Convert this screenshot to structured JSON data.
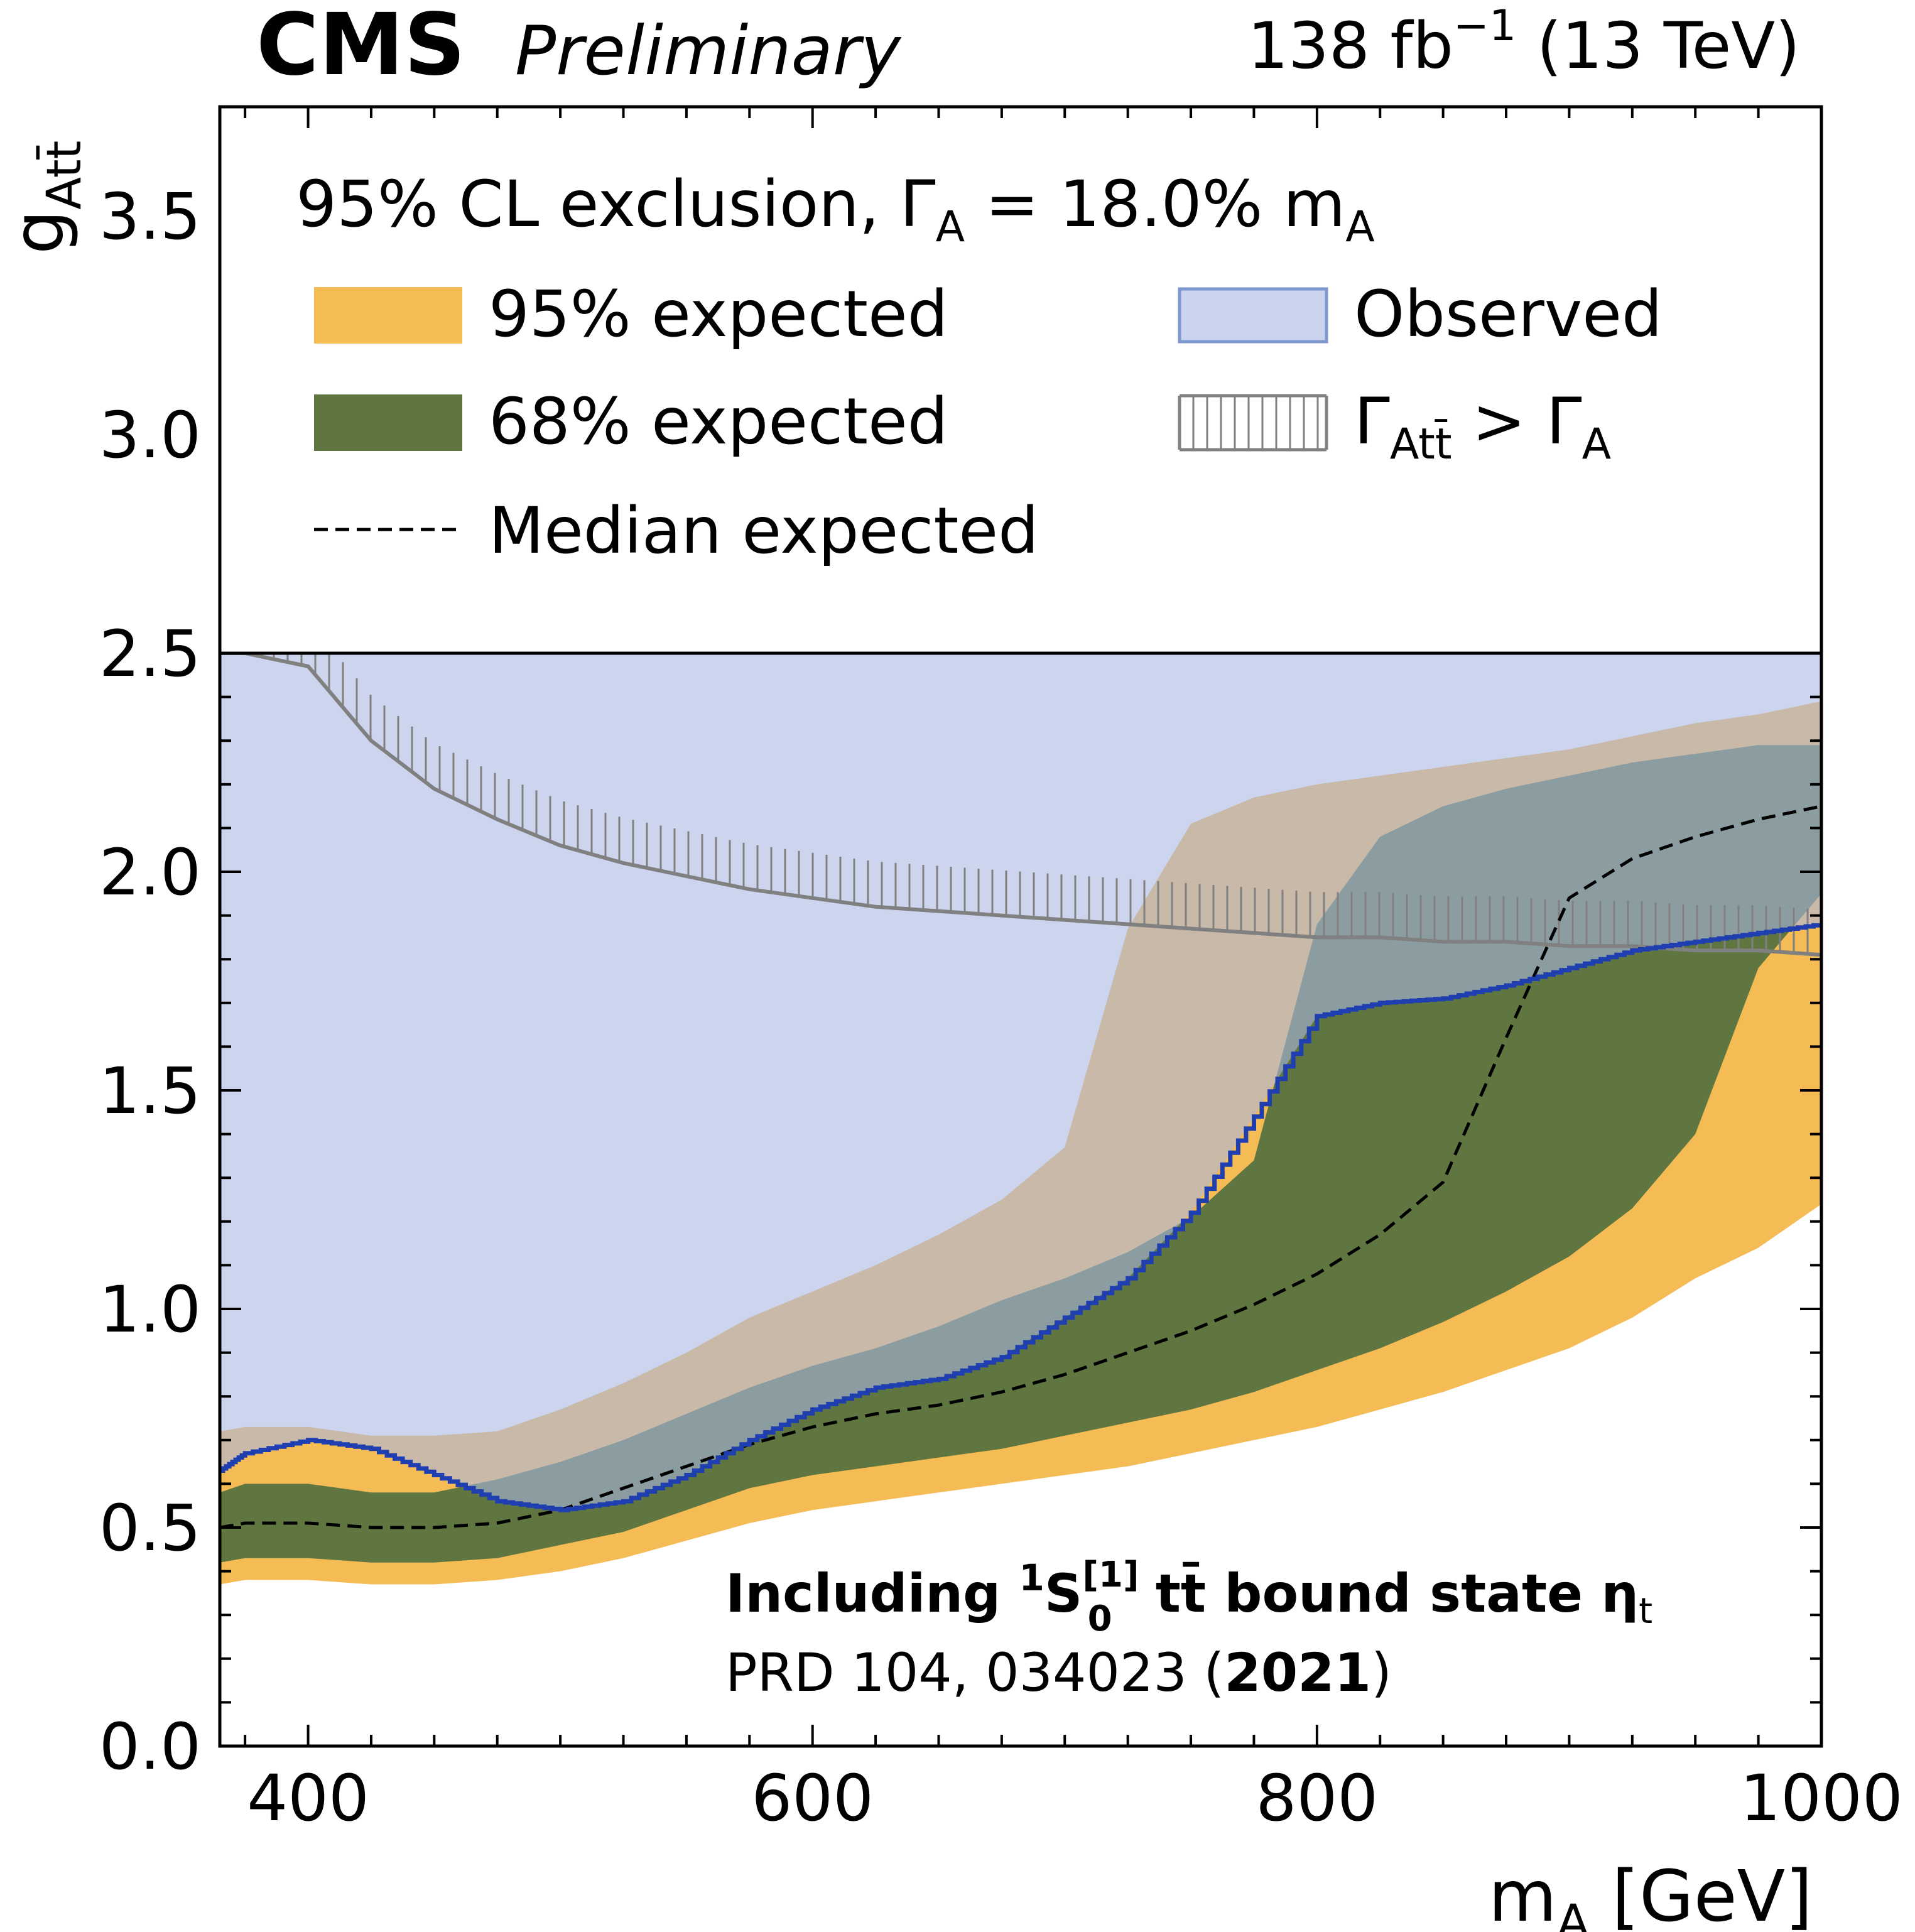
{
  "header": {
    "experiment": "CMS",
    "status": "Preliminary",
    "lumi_value": "138 fb",
    "lumi_exp": "−1",
    "energy": " (13 TeV)"
  },
  "chart_data": {
    "type": "area",
    "title": "95% CL exclusion, Γ_A = 18.0% m_A",
    "title_parts": {
      "prefix": "95% CL exclusion, Γ",
      "sub": "A",
      "mid": " =  18.0% m",
      "sub2": "A"
    },
    "xlabel": "m_A [GeV]",
    "xlabel_parts": {
      "main": "m",
      "sub": "A",
      "unit": " [GeV]"
    },
    "ylabel": "g_Att̄",
    "ylabel_parts": {
      "main": "g",
      "sub": "Att̄"
    },
    "xlim": [
      365,
      1000
    ],
    "ylim": [
      0,
      3.75
    ],
    "ylim_data": [
      0,
      2.5
    ],
    "legend_split_y": 2.5,
    "x_ticks": [
      400,
      600,
      800,
      1000
    ],
    "x_tick_labels": [
      "400",
      "600",
      "800",
      "1000"
    ],
    "y_ticks": [
      0,
      0.5,
      1.0,
      1.5,
      2.0,
      2.5,
      3.0,
      3.5
    ],
    "y_tick_labels": [
      "0.0",
      "0.5",
      "1.0",
      "1.5",
      "2.0",
      "2.5",
      "3.0",
      "3.5"
    ],
    "x": [
      365,
      375,
      400,
      425,
      450,
      475,
      500,
      525,
      550,
      575,
      600,
      625,
      650,
      675,
      700,
      725,
      750,
      775,
      800,
      825,
      850,
      875,
      900,
      925,
      950,
      975,
      1000
    ],
    "expected_95_low": [
      0.37,
      0.38,
      0.38,
      0.37,
      0.37,
      0.38,
      0.4,
      0.43,
      0.47,
      0.51,
      0.54,
      0.56,
      0.58,
      0.6,
      0.62,
      0.64,
      0.67,
      0.7,
      0.73,
      0.77,
      0.81,
      0.86,
      0.91,
      0.98,
      1.07,
      1.14,
      1.24
    ],
    "expected_68_low": [
      0.42,
      0.43,
      0.43,
      0.42,
      0.42,
      0.43,
      0.46,
      0.49,
      0.54,
      0.59,
      0.62,
      0.64,
      0.66,
      0.68,
      0.71,
      0.74,
      0.77,
      0.81,
      0.86,
      0.91,
      0.97,
      1.04,
      1.12,
      1.23,
      1.4,
      1.78,
      1.95
    ],
    "expected_median": [
      0.5,
      0.51,
      0.51,
      0.5,
      0.5,
      0.51,
      0.54,
      0.59,
      0.64,
      0.69,
      0.73,
      0.76,
      0.78,
      0.81,
      0.85,
      0.9,
      0.95,
      1.01,
      1.08,
      1.17,
      1.29,
      1.62,
      1.94,
      2.03,
      2.08,
      2.12,
      2.15
    ],
    "expected_68_high": [
      0.58,
      0.6,
      0.6,
      0.58,
      0.58,
      0.61,
      0.65,
      0.7,
      0.76,
      0.82,
      0.87,
      0.91,
      0.96,
      1.02,
      1.07,
      1.13,
      1.21,
      1.34,
      1.88,
      2.08,
      2.15,
      2.19,
      2.22,
      2.25,
      2.27,
      2.29,
      2.29
    ],
    "expected_95_high": [
      0.72,
      0.73,
      0.73,
      0.71,
      0.71,
      0.72,
      0.77,
      0.83,
      0.9,
      0.98,
      1.04,
      1.1,
      1.17,
      1.25,
      1.37,
      1.87,
      2.11,
      2.17,
      2.2,
      2.22,
      2.24,
      2.26,
      2.28,
      2.31,
      2.34,
      2.36,
      2.39
    ],
    "observed": [
      0.63,
      0.67,
      0.7,
      0.68,
      0.62,
      0.56,
      0.54,
      0.56,
      0.62,
      0.7,
      0.77,
      0.82,
      0.84,
      0.89,
      0.98,
      1.07,
      1.22,
      1.44,
      1.67,
      1.7,
      1.71,
      1.74,
      1.78,
      1.82,
      1.84,
      1.86,
      1.88
    ],
    "width_limit": [
      2.5,
      2.5,
      2.47,
      2.3,
      2.19,
      2.12,
      2.06,
      2.02,
      1.99,
      1.96,
      1.94,
      1.92,
      1.91,
      1.9,
      1.89,
      1.88,
      1.87,
      1.86,
      1.85,
      1.85,
      1.84,
      1.84,
      1.83,
      1.83,
      1.82,
      1.82,
      1.81
    ],
    "series": [
      {
        "name": "95% expected",
        "color": "#f5bb54"
      },
      {
        "name": "68% expected",
        "color": "#607641"
      },
      {
        "name": "Median expected",
        "color": "#000000"
      },
      {
        "name": "Observed",
        "color": "#c9d3ed"
      },
      {
        "name": "Γ_Att̄ > Γ_A",
        "color": "#808080"
      }
    ],
    "legend": {
      "exp95": "95% expected",
      "exp68": "68% expected",
      "median": "Median expected",
      "observed": "Observed",
      "width_prefix": "Γ",
      "width_sub": "Att̄",
      "width_mid": " > Γ",
      "width_sub2": "A"
    },
    "annotation": {
      "line1_prefix": "Including ",
      "line1_sup": "1",
      "line1_S": "S",
      "line1_sup2": "[1]",
      "line1_sub": "0",
      "line1_suffix": " tt̄ bound state η",
      "line1_sub3": "t",
      "line2_prefix": "PRD 104, 034023 (",
      "line2_bold": "2021",
      "line2_suffix": ")"
    },
    "colors": {
      "exp95": "#f5bb54",
      "exp68": "#607641",
      "observed_fill": "#aab8e3",
      "observed_line": "#1f3fb0",
      "width_line": "#808080",
      "legend_observed_edge": "#7f97cf"
    },
    "legend_placement": "top",
    "grid": false
  }
}
